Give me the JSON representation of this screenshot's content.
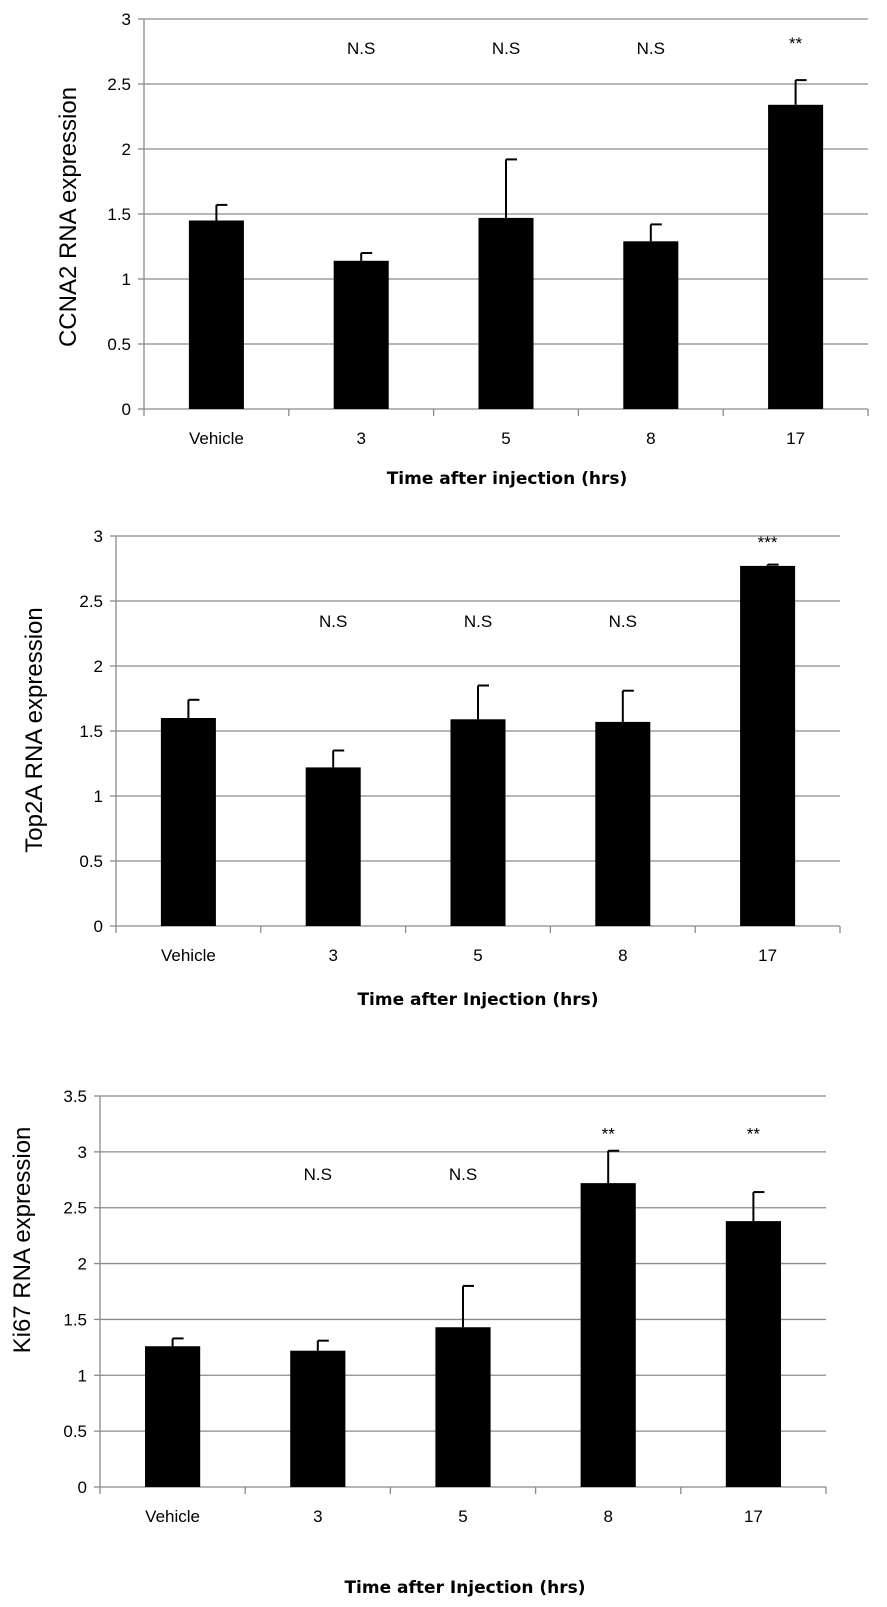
{
  "chart_data": [
    {
      "type": "bar",
      "categories": [
        "Vehicle",
        "3",
        "5",
        "8",
        "17"
      ],
      "values": [
        1.45,
        1.14,
        1.47,
        1.29,
        2.34
      ],
      "errors": [
        0.12,
        0.06,
        0.45,
        0.13,
        0.19
      ],
      "annotations": [
        "",
        "N.S",
        "N.S",
        "N.S",
        "**"
      ],
      "xlabel": "Time after injection (hrs)",
      "ylabel": "CCNA2 RNA expression",
      "ylim": [
        0,
        3
      ],
      "yticks": [
        "0",
        "0.5",
        "1",
        "1.5",
        "2",
        "2.5",
        "3"
      ],
      "grid": true,
      "bar_color": "#000000"
    },
    {
      "type": "bar",
      "categories": [
        "Vehicle",
        "3",
        "5",
        "8",
        "17"
      ],
      "values": [
        1.6,
        1.22,
        1.59,
        1.57,
        2.77
      ],
      "errors": [
        0.14,
        0.13,
        0.26,
        0.24,
        0.01
      ],
      "annotations": [
        "",
        "N.S",
        "N.S",
        "N.S",
        "***"
      ],
      "xlabel": "Time after Injection (hrs)",
      "ylabel": "Top2A RNA expression",
      "ylim": [
        0,
        3
      ],
      "yticks": [
        "0",
        "0.5",
        "1",
        "1.5",
        "2",
        "2.5",
        "3"
      ],
      "grid": true,
      "bar_color": "#000000"
    },
    {
      "type": "bar",
      "categories": [
        "Vehicle",
        "3",
        "5",
        "8",
        "17"
      ],
      "values": [
        1.26,
        1.22,
        1.43,
        2.72,
        2.38
      ],
      "errors": [
        0.07,
        0.09,
        0.37,
        0.29,
        0.26
      ],
      "annotations": [
        "",
        "N.S",
        "N.S",
        "**",
        "**"
      ],
      "xlabel": "Time after Injection (hrs)",
      "ylabel": "Ki67 RNA expression",
      "ylim": [
        0,
        3.5
      ],
      "yticks": [
        "0",
        "0.5",
        "1",
        "1.5",
        "2",
        "2.5",
        "3",
        "3.5"
      ],
      "grid": true,
      "bar_color": "#000000"
    }
  ]
}
